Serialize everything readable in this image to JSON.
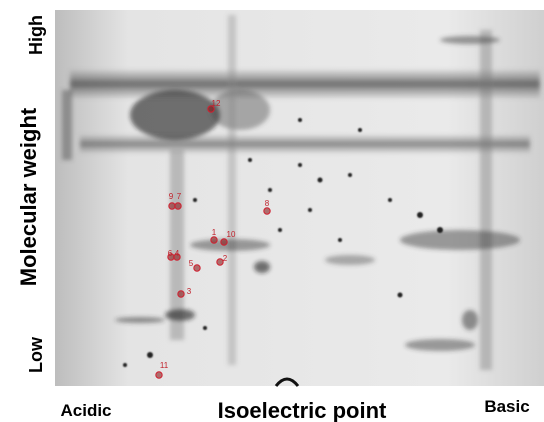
{
  "axis": {
    "y_high": "High",
    "y_title": "Molecular weight",
    "y_low": "Low",
    "x_left": "Acidic",
    "x_title": "Isoelectric point",
    "x_right": "Basic"
  },
  "spots": [
    {
      "label": "1"
    },
    {
      "label": "2"
    },
    {
      "label": "3"
    },
    {
      "label": "4"
    },
    {
      "label": "5"
    },
    {
      "label": "6"
    },
    {
      "label": "7"
    },
    {
      "label": "8"
    },
    {
      "label": "9"
    },
    {
      "label": "10"
    },
    {
      "label": "11"
    },
    {
      "label": "12"
    }
  ]
}
